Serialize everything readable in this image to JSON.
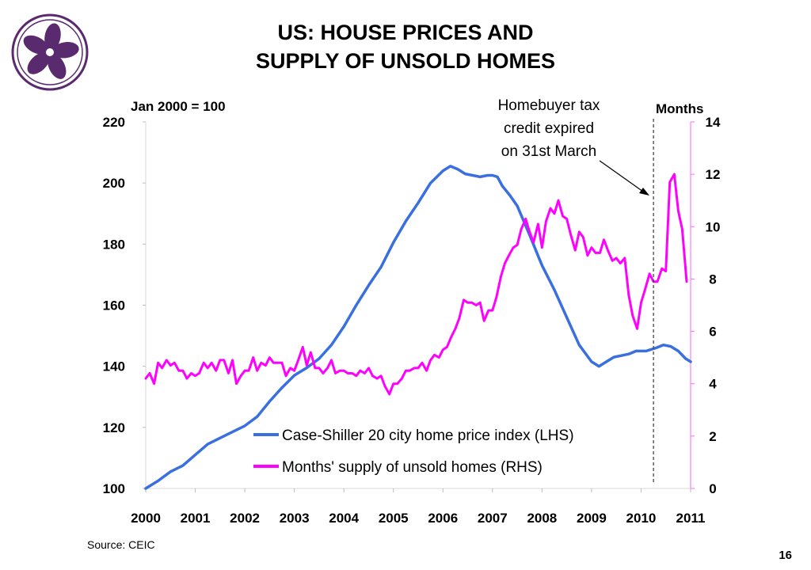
{
  "slide": {
    "title_line1": "US: HOUSE PRICES AND",
    "title_line2": "SUPPLY OF UNSOLD HOMES",
    "source": "Source: CEIC",
    "page_number": "16",
    "logo_icon": "bauhinia-flower-icon",
    "logo_color": "#5a2a6e"
  },
  "chart_data": {
    "type": "line",
    "left_axis_title": "Jan 2000 = 100",
    "right_axis_title": "Months",
    "left_ylim": [
      100,
      220
    ],
    "right_ylim": [
      0,
      14
    ],
    "left_ticks": [
      "100",
      "120",
      "140",
      "160",
      "180",
      "200",
      "220"
    ],
    "right_ticks": [
      "0",
      "2",
      "4",
      "6",
      "8",
      "10",
      "12",
      "14"
    ],
    "x_range": [
      2000,
      2011
    ],
    "x_ticks": [
      "2000",
      "2001",
      "2002",
      "2003",
      "2004",
      "2005",
      "2006",
      "2007",
      "2008",
      "2009",
      "2010",
      "2011"
    ],
    "grid": false,
    "legend_position": "bottom-center",
    "annotation": {
      "lines": [
        "Homebuyer tax",
        "credit expired",
        "on 31st March"
      ],
      "x": 2010.25
    },
    "series": [
      {
        "name": "Case-Shiller 20 city home price index (LHS)",
        "axis": "left",
        "color": "#3a6fe0",
        "x": [
          2000.0,
          2000.25,
          2000.5,
          2000.75,
          2001.0,
          2001.25,
          2001.5,
          2001.75,
          2002.0,
          2002.25,
          2002.5,
          2002.75,
          2003.0,
          2003.25,
          2003.5,
          2003.75,
          2004.0,
          2004.25,
          2004.5,
          2004.75,
          2005.0,
          2005.25,
          2005.5,
          2005.75,
          2006.0,
          2006.15,
          2006.3,
          2006.45,
          2006.6,
          2006.75,
          2006.9,
          2007.0,
          2007.1,
          2007.2,
          2007.35,
          2007.5,
          2007.75,
          2008.0,
          2008.25,
          2008.5,
          2008.75,
          2009.0,
          2009.15,
          2009.3,
          2009.45,
          2009.6,
          2009.75,
          2009.9,
          2010.1,
          2010.3,
          2010.45,
          2010.6,
          2010.75,
          2010.9,
          2011.0
        ],
        "values": [
          100.0,
          102.5,
          105.5,
          107.5,
          111.0,
          114.5,
          116.5,
          118.5,
          120.5,
          123.5,
          128.5,
          133.0,
          137.0,
          139.5,
          142.5,
          147.0,
          153.0,
          160.0,
          166.5,
          172.5,
          180.5,
          187.5,
          193.5,
          200.0,
          204.0,
          205.5,
          204.5,
          203.0,
          202.5,
          202.0,
          202.5,
          202.5,
          202.0,
          199.0,
          196.0,
          192.5,
          183.0,
          173.0,
          165.0,
          156.0,
          147.0,
          141.5,
          140.0,
          141.5,
          143.0,
          143.5,
          144.0,
          145.0,
          145.0,
          146.0,
          147.0,
          146.5,
          145.0,
          142.5,
          141.5
        ]
      },
      {
        "name": "Months' supply of unsold homes (RHS)",
        "axis": "right",
        "color": "#ff00ff",
        "x": [
          2000.0,
          2000.08,
          2000.17,
          2000.25,
          2000.33,
          2000.42,
          2000.5,
          2000.58,
          2000.67,
          2000.75,
          2000.83,
          2000.92,
          2001.0,
          2001.08,
          2001.17,
          2001.25,
          2001.33,
          2001.42,
          2001.5,
          2001.58,
          2001.67,
          2001.75,
          2001.83,
          2001.92,
          2002.0,
          2002.08,
          2002.17,
          2002.25,
          2002.33,
          2002.42,
          2002.5,
          2002.58,
          2002.67,
          2002.75,
          2002.83,
          2002.92,
          2003.0,
          2003.08,
          2003.17,
          2003.25,
          2003.33,
          2003.42,
          2003.5,
          2003.58,
          2003.67,
          2003.75,
          2003.83,
          2003.92,
          2004.0,
          2004.08,
          2004.17,
          2004.25,
          2004.33,
          2004.42,
          2004.5,
          2004.58,
          2004.67,
          2004.75,
          2004.83,
          2004.92,
          2005.0,
          2005.08,
          2005.17,
          2005.25,
          2005.33,
          2005.42,
          2005.5,
          2005.58,
          2005.67,
          2005.75,
          2005.83,
          2005.92,
          2006.0,
          2006.08,
          2006.17,
          2006.25,
          2006.33,
          2006.42,
          2006.5,
          2006.58,
          2006.67,
          2006.75,
          2006.83,
          2006.92,
          2007.0,
          2007.08,
          2007.17,
          2007.25,
          2007.33,
          2007.42,
          2007.5,
          2007.58,
          2007.67,
          2007.75,
          2007.83,
          2007.92,
          2008.0,
          2008.08,
          2008.17,
          2008.25,
          2008.33,
          2008.42,
          2008.5,
          2008.58,
          2008.67,
          2008.75,
          2008.83,
          2008.92,
          2009.0,
          2009.08,
          2009.17,
          2009.25,
          2009.33,
          2009.42,
          2009.5,
          2009.58,
          2009.67,
          2009.75,
          2009.83,
          2009.92,
          2010.0,
          2010.08,
          2010.17,
          2010.25,
          2010.33,
          2010.42,
          2010.5,
          2010.58,
          2010.67,
          2010.75,
          2010.83,
          2010.92
        ],
        "values": [
          4.2,
          4.4,
          4.0,
          4.8,
          4.6,
          4.9,
          4.7,
          4.8,
          4.5,
          4.5,
          4.2,
          4.4,
          4.3,
          4.4,
          4.8,
          4.6,
          4.8,
          4.5,
          4.9,
          4.9,
          4.4,
          4.9,
          4.0,
          4.3,
          4.5,
          4.5,
          5.0,
          4.5,
          4.8,
          4.7,
          5.0,
          4.8,
          4.8,
          4.8,
          4.3,
          4.6,
          4.5,
          4.9,
          5.4,
          4.7,
          5.2,
          4.6,
          4.6,
          4.4,
          4.6,
          4.9,
          4.4,
          4.5,
          4.5,
          4.4,
          4.4,
          4.3,
          4.5,
          4.4,
          4.6,
          4.3,
          4.2,
          4.3,
          3.9,
          3.6,
          4.0,
          4.0,
          4.2,
          4.5,
          4.5,
          4.6,
          4.6,
          4.8,
          4.5,
          4.9,
          5.1,
          5.0,
          5.3,
          5.4,
          5.8,
          6.1,
          6.5,
          7.2,
          7.1,
          7.1,
          7.0,
          7.1,
          6.4,
          6.8,
          6.8,
          7.3,
          8.1,
          8.6,
          8.9,
          9.2,
          9.3,
          9.9,
          10.3,
          9.8,
          9.4,
          10.1,
          9.2,
          10.2,
          10.7,
          10.5,
          11.0,
          10.4,
          10.3,
          9.7,
          9.1,
          9.8,
          9.6,
          8.9,
          9.2,
          9.0,
          9.0,
          9.5,
          9.1,
          8.7,
          8.8,
          8.6,
          8.8,
          7.4,
          6.6,
          6.1,
          7.1,
          7.6,
          8.2,
          7.9,
          7.9,
          8.4,
          8.3,
          11.7,
          12.0,
          10.6,
          9.9,
          7.9
        ]
      }
    ]
  }
}
